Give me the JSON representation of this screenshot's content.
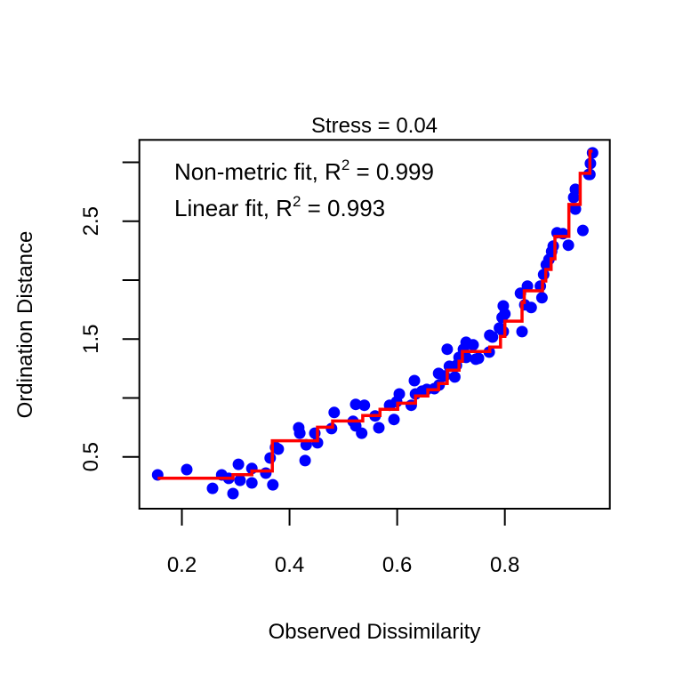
{
  "chart_data": {
    "type": "scatter",
    "title": "Stress = 0.04",
    "xlabel": "Observed Dissimilarity",
    "ylabel": "Ordination Distance",
    "xlim": [
      0.121,
      0.995
    ],
    "ylim": [
      0.06,
      3.19
    ],
    "x_ticks": [
      0.2,
      0.4,
      0.6,
      0.8
    ],
    "x_tick_labels": [
      "0.2",
      "0.4",
      "0.6",
      "0.8"
    ],
    "y_ticks": [
      0.5,
      1.0,
      1.5,
      2.0,
      2.5,
      3.0
    ],
    "y_tick_labels": [
      "0.5",
      "",
      "1.5",
      "",
      "2.5",
      ""
    ],
    "grid": false,
    "annotations": [
      {
        "prefix": "Non-metric fit, R",
        "sup": "2",
        "suffix": " = 0.999"
      },
      {
        "prefix": "Linear fit, R",
        "sup": "2",
        "suffix": " = 0.993"
      }
    ],
    "colors": {
      "points": "#0000ff",
      "fit_line": "#ff0000",
      "axis": "#000000"
    },
    "series": [
      {
        "name": "observations",
        "kind": "points",
        "points": [
          [
            0.155,
            0.347
          ],
          [
            0.209,
            0.392
          ],
          [
            0.257,
            0.233
          ],
          [
            0.274,
            0.347
          ],
          [
            0.287,
            0.317
          ],
          [
            0.295,
            0.188
          ],
          [
            0.305,
            0.437
          ],
          [
            0.308,
            0.301
          ],
          [
            0.33,
            0.401
          ],
          [
            0.33,
            0.279
          ],
          [
            0.356,
            0.362
          ],
          [
            0.369,
            0.263
          ],
          [
            0.364,
            0.49
          ],
          [
            0.374,
            0.581
          ],
          [
            0.379,
            0.566
          ],
          [
            0.417,
            0.747
          ],
          [
            0.419,
            0.701
          ],
          [
            0.431,
            0.603
          ],
          [
            0.429,
            0.468
          ],
          [
            0.447,
            0.701
          ],
          [
            0.452,
            0.619
          ],
          [
            0.483,
            0.877
          ],
          [
            0.478,
            0.74
          ],
          [
            0.523,
            0.945
          ],
          [
            0.518,
            0.801
          ],
          [
            0.523,
            0.763
          ],
          [
            0.534,
            0.701
          ],
          [
            0.539,
            0.938
          ],
          [
            0.559,
            0.847
          ],
          [
            0.566,
            0.747
          ],
          [
            0.586,
            0.938
          ],
          [
            0.594,
            0.817
          ],
          [
            0.599,
            0.968
          ],
          [
            0.604,
            1.034
          ],
          [
            0.626,
            0.938
          ],
          [
            0.634,
            1.034
          ],
          [
            0.632,
            1.147
          ],
          [
            0.646,
            1.057
          ],
          [
            0.655,
            1.072
          ],
          [
            0.669,
            1.079
          ],
          [
            0.678,
            1.11
          ],
          [
            0.677,
            1.208
          ],
          [
            0.688,
            1.186
          ],
          [
            0.693,
            1.413
          ],
          [
            0.697,
            1.268
          ],
          [
            0.707,
            1.178
          ],
          [
            0.71,
            1.276
          ],
          [
            0.715,
            1.344
          ],
          [
            0.723,
            1.413
          ],
          [
            0.728,
            1.472
          ],
          [
            0.728,
            1.344
          ],
          [
            0.741,
            1.45
          ],
          [
            0.746,
            1.329
          ],
          [
            0.751,
            1.336
          ],
          [
            0.772,
            1.532
          ],
          [
            0.771,
            1.389
          ],
          [
            0.777,
            1.517
          ],
          [
            0.795,
            1.683
          ],
          [
            0.8,
            1.713
          ],
          [
            0.797,
            1.781
          ],
          [
            0.79,
            1.593
          ],
          [
            0.797,
            1.563
          ],
          [
            0.832,
            1.563
          ],
          [
            0.829,
            1.888
          ],
          [
            0.837,
            1.79
          ],
          [
            0.842,
            1.949
          ],
          [
            0.849,
            1.767
          ],
          [
            0.866,
            1.949
          ],
          [
            0.869,
            1.85
          ],
          [
            0.872,
            2.047
          ],
          [
            0.877,
            2.13
          ],
          [
            0.882,
            2.175
          ],
          [
            0.887,
            2.243
          ],
          [
            0.89,
            2.289
          ],
          [
            0.897,
            2.402
          ],
          [
            0.908,
            2.394
          ],
          [
            0.918,
            2.296
          ],
          [
            0.945,
            2.422
          ],
          [
            0.931,
            2.77
          ],
          [
            0.928,
            2.702
          ],
          [
            0.931,
            2.603
          ],
          [
            0.958,
            2.897
          ],
          [
            0.959,
            2.989
          ],
          [
            0.963,
            3.08
          ],
          [
            0.956,
            2.897
          ]
        ]
      },
      {
        "name": "non-metric step fit",
        "kind": "step",
        "steps": [
          [
            0.155,
            0.319
          ],
          [
            0.295,
            0.349
          ],
          [
            0.33,
            0.38
          ],
          [
            0.368,
            0.637
          ],
          [
            0.452,
            0.751
          ],
          [
            0.48,
            0.804
          ],
          [
            0.536,
            0.85
          ],
          [
            0.568,
            0.903
          ],
          [
            0.601,
            0.955
          ],
          [
            0.634,
            1.016
          ],
          [
            0.657,
            1.069
          ],
          [
            0.677,
            1.122
          ],
          [
            0.693,
            1.235
          ],
          [
            0.715,
            1.311
          ],
          [
            0.721,
            1.394
          ],
          [
            0.772,
            1.432
          ],
          [
            0.792,
            1.523
          ],
          [
            0.8,
            1.652
          ],
          [
            0.832,
            1.81
          ],
          [
            0.836,
            1.909
          ],
          [
            0.87,
            1.992
          ],
          [
            0.876,
            2.09
          ],
          [
            0.886,
            2.181
          ],
          [
            0.893,
            2.37
          ],
          [
            0.919,
            2.642
          ],
          [
            0.94,
            2.906
          ],
          [
            0.958,
            3.095
          ]
        ],
        "x_end": 0.963
      }
    ]
  }
}
